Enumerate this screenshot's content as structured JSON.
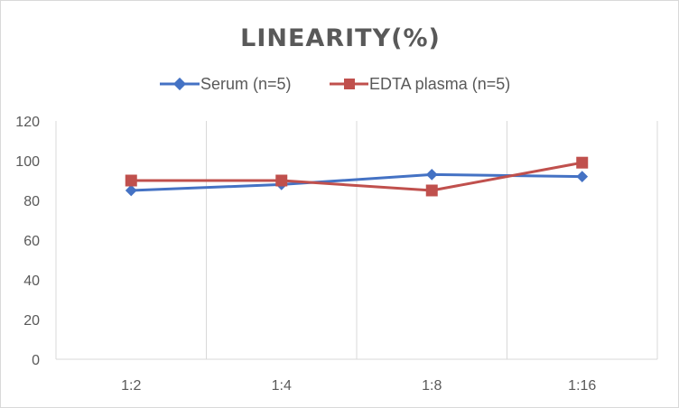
{
  "chart_data": {
    "type": "line",
    "title": "LINEARITY(%)",
    "categories": [
      "1:2",
      "1:4",
      "1:8",
      "1:16"
    ],
    "ylim": [
      0,
      120
    ],
    "yticks": [
      0,
      20,
      40,
      60,
      80,
      100,
      120
    ],
    "grid": "vertical",
    "legend_position": "top",
    "series": [
      {
        "name": "Serum (n=5)",
        "values": [
          85,
          88,
          93,
          92
        ],
        "color": "#4472c4",
        "marker": "diamond"
      },
      {
        "name": "EDTA plasma (n=5)",
        "values": [
          90,
          90,
          85,
          99
        ],
        "color": "#c0504d",
        "marker": "square"
      }
    ]
  }
}
